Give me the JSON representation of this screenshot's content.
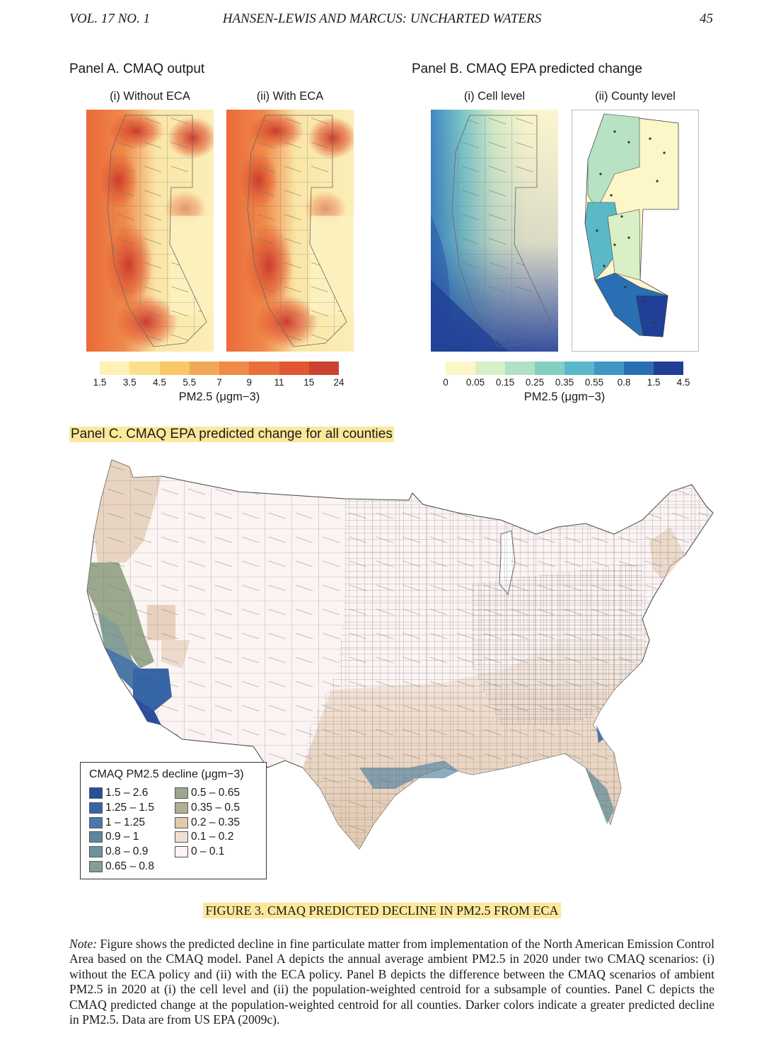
{
  "header": {
    "left": "VOL. 17 NO. 1",
    "center": "HANSEN-LEWIS AND MARCUS: UNCHARTED WATERS",
    "page": "45"
  },
  "panel_a": {
    "title": "Panel A. CMAQ output",
    "sub1": "(i) Without ECA",
    "sub2": "(ii) With ECA",
    "colorbar_ticks": [
      "1.5",
      "3.5",
      "4.5",
      "5.5",
      "7",
      "9",
      "11",
      "15",
      "24"
    ],
    "colorbar_colors": [
      "#fdf1b8",
      "#fbe08c",
      "#f8c767",
      "#f3a857",
      "#ef8a47",
      "#e9703b",
      "#df5733",
      "#cc4230"
    ],
    "unit": "PM2.5 (μgm−3)"
  },
  "panel_b": {
    "title": "Panel B. CMAQ EPA predicted change",
    "sub1": "(i) Cell level",
    "sub2": "(ii) County level",
    "colorbar_ticks": [
      "0",
      "0.05",
      "0.15",
      "0.25",
      "0.35",
      "0.55",
      "0.8",
      "1.5",
      "4.5"
    ],
    "colorbar_colors": [
      "#fcf6c8",
      "#d9efc6",
      "#b1e0c4",
      "#83cfc3",
      "#5bb8c8",
      "#3e97c4",
      "#2a6fb4",
      "#203f96"
    ],
    "unit": "PM2.5 (μgm−3)"
  },
  "panel_c": {
    "title": "Panel C. CMAQ EPA predicted change for all counties",
    "legend_title": "CMAQ PM2.5 decline (μgm−3)",
    "legend": [
      {
        "label": "1.5 – 2.6",
        "color": "#2a4e9a"
      },
      {
        "label": "1.25 – 1.5",
        "color": "#3565a8"
      },
      {
        "label": "1 – 1.25",
        "color": "#4a78a8"
      },
      {
        "label": "0.9 – 1",
        "color": "#5a88a2"
      },
      {
        "label": "0.8 – 0.9",
        "color": "#6b949c"
      },
      {
        "label": "0.65 – 0.8",
        "color": "#849f97"
      },
      {
        "label": "0.5 – 0.65",
        "color": "#9aa88e"
      },
      {
        "label": "0.35 – 0.5",
        "color": "#b3ad95"
      },
      {
        "label": "0.2 – 0.35",
        "color": "#e2c9b0"
      },
      {
        "label": "0.1 – 0.2",
        "color": "#f1dfd1"
      },
      {
        "label": "0 – 0.1",
        "color": "#fcf3f3"
      }
    ]
  },
  "caption": "FIGURE 3. CMAQ PREDICTED DECLINE IN PM2.5 FROM ECA",
  "note": {
    "label": "Note:",
    "text": "Figure shows the predicted decline in fine particulate matter from implementation of the North American Emission Control Area based on the CMAQ model. Panel A depicts the annual average ambient PM2.5 in 2020 under two CMAQ scenarios: (i) without the ECA policy and (ii) with the ECA policy. Panel B depicts the difference between the CMAQ scenarios of ambient PM2.5 in 2020 at (i) the cell level and (ii) the population-weighted centroid for a subsample of counties. Panel C depicts the CMAQ predicted change at the population-weighted centroid for all counties. Darker colors indicate a greater predicted decline in PM2.5. Data are from US EPA (2009c)."
  }
}
